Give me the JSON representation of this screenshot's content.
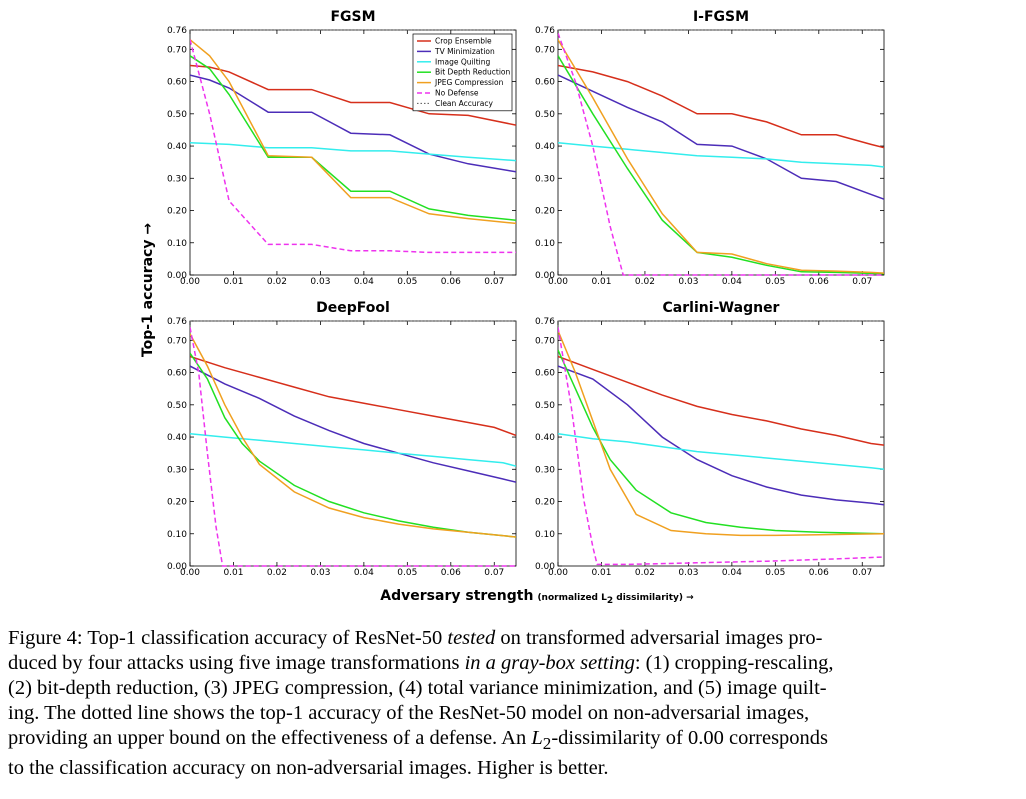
{
  "chart_data": {
    "type": "line",
    "xlabel": "Adversary strength",
    "xlabel_sub": "(normalized L",
    "xlabel_sub2": " dissimilarity) →",
    "ylabel": "Top-1 accuracy →",
    "xlim": [
      0,
      0.075
    ],
    "ylim": [
      0,
      0.76
    ],
    "xticks": [
      "0.00",
      "0.01",
      "0.02",
      "0.03",
      "0.04",
      "0.05",
      "0.06",
      "0.07"
    ],
    "yticks": [
      "0.00",
      "0.10",
      "0.20",
      "0.30",
      "0.40",
      "0.50",
      "0.60",
      "0.70",
      "0.76"
    ],
    "legend_position": "top-right of first panel",
    "series_styles": [
      {
        "name": "Crop Ensemble",
        "color": "#d62f1b",
        "dash": ""
      },
      {
        "name": "TV Minimization",
        "color": "#4c2db8",
        "dash": ""
      },
      {
        "name": "Image Quilting",
        "color": "#33eded",
        "dash": ""
      },
      {
        "name": "Bit Depth Reduction",
        "color": "#22e022",
        "dash": ""
      },
      {
        "name": "JPEG Compression",
        "color": "#f0a020",
        "dash": ""
      },
      {
        "name": "No Defense",
        "color": "#ee33ee",
        "dash": "5,3"
      },
      {
        "name": "Clean Accuracy",
        "color": "#555555",
        "dash": "1.5,2"
      }
    ],
    "panels": [
      {
        "title": "FGSM",
        "series": [
          {
            "name": "Crop Ensemble",
            "x": [
              0,
              0.0045,
              0.009,
              0.018,
              0.028,
              0.037,
              0.046,
              0.055,
              0.064,
              0.075
            ],
            "y": [
              0.65,
              0.645,
              0.63,
              0.575,
              0.575,
              0.535,
              0.535,
              0.5,
              0.495,
              0.465
            ]
          },
          {
            "name": "TV Minimization",
            "x": [
              0,
              0.0045,
              0.009,
              0.018,
              0.028,
              0.037,
              0.046,
              0.055,
              0.064,
              0.075
            ],
            "y": [
              0.62,
              0.605,
              0.58,
              0.505,
              0.505,
              0.44,
              0.435,
              0.375,
              0.345,
              0.32
            ]
          },
          {
            "name": "Image Quilting",
            "x": [
              0,
              0.009,
              0.018,
              0.028,
              0.037,
              0.046,
              0.055,
              0.064,
              0.075
            ],
            "y": [
              0.41,
              0.405,
              0.395,
              0.395,
              0.385,
              0.385,
              0.375,
              0.365,
              0.355
            ]
          },
          {
            "name": "Bit Depth Reduction",
            "x": [
              0,
              0.0045,
              0.009,
              0.018,
              0.028,
              0.037,
              0.046,
              0.055,
              0.064,
              0.075
            ],
            "y": [
              0.68,
              0.64,
              0.56,
              0.365,
              0.365,
              0.26,
              0.26,
              0.205,
              0.185,
              0.17
            ]
          },
          {
            "name": "JPEG Compression",
            "x": [
              0,
              0.0045,
              0.009,
              0.018,
              0.028,
              0.037,
              0.046,
              0.055,
              0.064,
              0.075
            ],
            "y": [
              0.73,
              0.68,
              0.6,
              0.37,
              0.365,
              0.24,
              0.24,
              0.19,
              0.175,
              0.16
            ]
          },
          {
            "name": "No Defense",
            "x": [
              0,
              0.0045,
              0.009,
              0.018,
              0.028,
              0.037,
              0.046,
              0.055,
              0.064,
              0.075
            ],
            "y": [
              0.73,
              0.5,
              0.23,
              0.095,
              0.095,
              0.075,
              0.075,
              0.07,
              0.07,
              0.07
            ]
          },
          {
            "name": "Clean Accuracy",
            "x": [
              0,
              0.075
            ],
            "y": [
              0.76,
              0.76
            ]
          }
        ]
      },
      {
        "title": "I-FGSM",
        "series": [
          {
            "name": "Crop Ensemble",
            "x": [
              0,
              0.008,
              0.016,
              0.024,
              0.032,
              0.04,
              0.048,
              0.056,
              0.064,
              0.072,
              0.075
            ],
            "y": [
              0.65,
              0.63,
              0.6,
              0.555,
              0.5,
              0.5,
              0.475,
              0.435,
              0.435,
              0.405,
              0.395
            ]
          },
          {
            "name": "TV Minimization",
            "x": [
              0,
              0.008,
              0.016,
              0.024,
              0.032,
              0.04,
              0.048,
              0.056,
              0.064,
              0.072,
              0.075
            ],
            "y": [
              0.62,
              0.57,
              0.52,
              0.475,
              0.405,
              0.4,
              0.36,
              0.3,
              0.29,
              0.25,
              0.235
            ]
          },
          {
            "name": "Image Quilting",
            "x": [
              0,
              0.008,
              0.016,
              0.024,
              0.032,
              0.04,
              0.048,
              0.056,
              0.064,
              0.072,
              0.075
            ],
            "y": [
              0.41,
              0.4,
              0.39,
              0.38,
              0.37,
              0.365,
              0.36,
              0.35,
              0.345,
              0.34,
              0.335
            ]
          },
          {
            "name": "Bit Depth Reduction",
            "x": [
              0,
              0.008,
              0.016,
              0.024,
              0.032,
              0.04,
              0.048,
              0.056,
              0.064,
              0.072,
              0.075
            ],
            "y": [
              0.68,
              0.5,
              0.33,
              0.17,
              0.07,
              0.055,
              0.03,
              0.01,
              0.008,
              0.005,
              0.004
            ]
          },
          {
            "name": "JPEG Compression",
            "x": [
              0,
              0.008,
              0.016,
              0.024,
              0.032,
              0.04,
              0.048,
              0.056,
              0.064,
              0.072,
              0.075
            ],
            "y": [
              0.73,
              0.55,
              0.36,
              0.19,
              0.07,
              0.065,
              0.035,
              0.015,
              0.012,
              0.008,
              0.006
            ]
          },
          {
            "name": "No Defense",
            "x": [
              0,
              0.004,
              0.008,
              0.012,
              0.015,
              0.024,
              0.032,
              0.048,
              0.075
            ],
            "y": [
              0.75,
              0.6,
              0.4,
              0.15,
              0.0,
              0.0,
              0.0,
              0.0,
              0.0
            ]
          },
          {
            "name": "Clean Accuracy",
            "x": [
              0,
              0.075
            ],
            "y": [
              0.76,
              0.76
            ]
          }
        ]
      },
      {
        "title": "DeepFool",
        "series": [
          {
            "name": "Crop Ensemble",
            "x": [
              0,
              0.008,
              0.016,
              0.024,
              0.032,
              0.04,
              0.048,
              0.056,
              0.064,
              0.07,
              0.075
            ],
            "y": [
              0.65,
              0.615,
              0.585,
              0.555,
              0.525,
              0.505,
              0.485,
              0.465,
              0.445,
              0.43,
              0.405
            ]
          },
          {
            "name": "TV Minimization",
            "x": [
              0,
              0.008,
              0.016,
              0.024,
              0.032,
              0.04,
              0.048,
              0.056,
              0.064,
              0.072,
              0.075
            ],
            "y": [
              0.62,
              0.565,
              0.52,
              0.465,
              0.42,
              0.38,
              0.35,
              0.32,
              0.295,
              0.27,
              0.26
            ]
          },
          {
            "name": "Image Quilting",
            "x": [
              0,
              0.008,
              0.016,
              0.024,
              0.032,
              0.04,
              0.048,
              0.056,
              0.064,
              0.072,
              0.075
            ],
            "y": [
              0.41,
              0.4,
              0.39,
              0.38,
              0.37,
              0.36,
              0.35,
              0.34,
              0.33,
              0.32,
              0.31
            ]
          },
          {
            "name": "Bit Depth Reduction",
            "x": [
              0,
              0.004,
              0.008,
              0.012,
              0.016,
              0.024,
              0.032,
              0.04,
              0.048,
              0.056,
              0.064,
              0.075
            ],
            "y": [
              0.66,
              0.58,
              0.46,
              0.38,
              0.325,
              0.25,
              0.2,
              0.165,
              0.14,
              0.12,
              0.105,
              0.09
            ]
          },
          {
            "name": "JPEG Compression",
            "x": [
              0,
              0.004,
              0.008,
              0.012,
              0.016,
              0.024,
              0.032,
              0.04,
              0.048,
              0.056,
              0.064,
              0.075
            ],
            "y": [
              0.72,
              0.62,
              0.5,
              0.4,
              0.315,
              0.23,
              0.18,
              0.15,
              0.13,
              0.115,
              0.105,
              0.09
            ]
          },
          {
            "name": "No Defense",
            "x": [
              0,
              0.002,
              0.004,
              0.006,
              0.0075,
              0.016,
              0.032,
              0.048,
              0.075
            ],
            "y": [
              0.74,
              0.6,
              0.35,
              0.12,
              0.0,
              0.0,
              0.0,
              0.0,
              0.0
            ]
          },
          {
            "name": "Clean Accuracy",
            "x": [
              0,
              0.075
            ],
            "y": [
              0.76,
              0.76
            ]
          }
        ]
      },
      {
        "title": "Carlini-Wagner",
        "series": [
          {
            "name": "Crop Ensemble",
            "x": [
              0,
              0.008,
              0.016,
              0.024,
              0.032,
              0.04,
              0.048,
              0.056,
              0.064,
              0.072,
              0.075
            ],
            "y": [
              0.65,
              0.61,
              0.57,
              0.53,
              0.495,
              0.47,
              0.45,
              0.425,
              0.405,
              0.38,
              0.375
            ]
          },
          {
            "name": "TV Minimization",
            "x": [
              0,
              0.008,
              0.016,
              0.024,
              0.032,
              0.04,
              0.048,
              0.056,
              0.064,
              0.072,
              0.075
            ],
            "y": [
              0.62,
              0.58,
              0.5,
              0.4,
              0.33,
              0.28,
              0.245,
              0.22,
              0.205,
              0.195,
              0.19
            ]
          },
          {
            "name": "Image Quilting",
            "x": [
              0,
              0.008,
              0.016,
              0.024,
              0.032,
              0.04,
              0.048,
              0.056,
              0.064,
              0.072,
              0.075
            ],
            "y": [
              0.41,
              0.395,
              0.385,
              0.37,
              0.355,
              0.345,
              0.335,
              0.325,
              0.315,
              0.305,
              0.3
            ]
          },
          {
            "name": "Bit Depth Reduction",
            "x": [
              0,
              0.004,
              0.008,
              0.012,
              0.018,
              0.026,
              0.034,
              0.042,
              0.05,
              0.06,
              0.075
            ],
            "y": [
              0.67,
              0.55,
              0.43,
              0.33,
              0.235,
              0.165,
              0.135,
              0.12,
              0.11,
              0.105,
              0.1
            ]
          },
          {
            "name": "JPEG Compression",
            "x": [
              0,
              0.004,
              0.008,
              0.012,
              0.018,
              0.026,
              0.034,
              0.042,
              0.05,
              0.06,
              0.075
            ],
            "y": [
              0.73,
              0.6,
              0.45,
              0.3,
              0.16,
              0.11,
              0.1,
              0.095,
              0.095,
              0.097,
              0.1
            ]
          },
          {
            "name": "No Defense",
            "x": [
              0,
              0.003,
              0.006,
              0.008,
              0.009,
              0.016,
              0.032,
              0.048,
              0.064,
              0.075
            ],
            "y": [
              0.74,
              0.5,
              0.2,
              0.06,
              0.005,
              0.005,
              0.01,
              0.015,
              0.022,
              0.028
            ]
          },
          {
            "name": "Clean Accuracy",
            "x": [
              0,
              0.075
            ],
            "y": [
              0.76,
              0.76
            ]
          }
        ]
      }
    ]
  },
  "caption": {
    "lines": [
      [
        "Figure 4: Top-1 classification accuracy of ResNet-50 ",
        "tested",
        " on transformed adversarial images pro-"
      ],
      [
        "duced by four attacks using five image transformations ",
        "in a gray-box setting",
        ": (1) cropping-rescaling,"
      ],
      [
        "(2) bit-depth reduction, (3) JPEG compression, (4) total variance minimization, and (5) image quilt-"
      ],
      [
        "ing.  The dotted line shows the top-1 accuracy of the ResNet-50 model on non-adversarial images,"
      ],
      [
        "providing an upper bound on the effectiveness of a defense. An ",
        "L",
        "2",
        "-dissimilarity of 0.00 corresponds"
      ],
      [
        "to the classification accuracy on non-adversarial images. Higher is better."
      ]
    ]
  }
}
